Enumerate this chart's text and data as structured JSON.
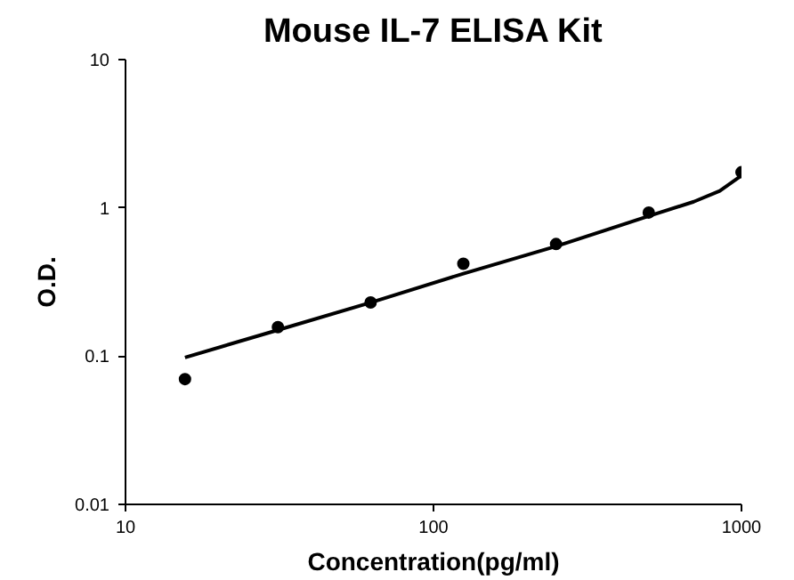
{
  "chart_data": {
    "type": "scatter",
    "title": "Mouse IL-7 ELISA Kit",
    "xlabel": "Concentration(pg/ml)",
    "ylabel": "O.D.",
    "log": "xy",
    "grid": false,
    "xlim": [
      10,
      1000
    ],
    "ylim": [
      0.01,
      10
    ],
    "xticks": [
      10,
      100,
      1000
    ],
    "yticks": [
      0.01,
      0.1,
      1,
      10
    ],
    "x": [
      15.6,
      31.25,
      62.5,
      125,
      250,
      500,
      1000
    ],
    "series": [
      {
        "color": "#000000",
        "marker": "circle",
        "values": [
          0.07,
          0.157,
          0.23,
          0.42,
          0.57,
          0.93,
          1.74
        ]
      },
      {
        "type": "line",
        "color": "#000000",
        "marker": "none",
        "x": [
          15.6,
          31.25,
          62.5,
          125,
          250,
          500,
          700,
          850,
          1000
        ],
        "values": [
          0.098,
          0.15,
          0.23,
          0.36,
          0.55,
          0.88,
          1.1,
          1.3,
          1.65
        ]
      }
    ]
  }
}
